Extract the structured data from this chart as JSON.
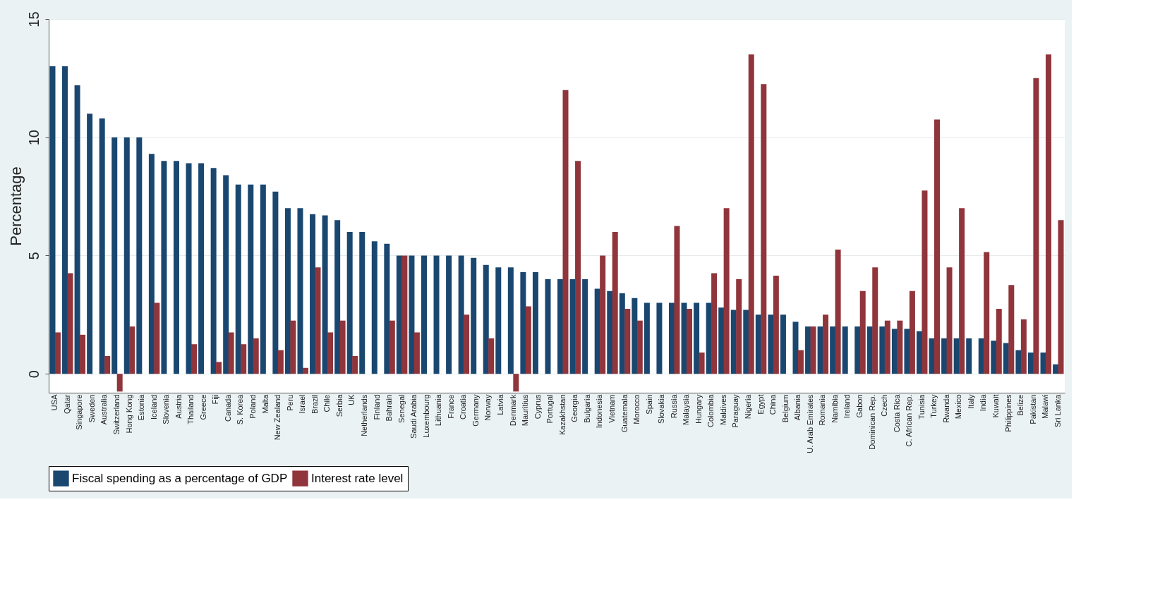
{
  "chart_data": {
    "type": "bar",
    "ylabel": "Percentage",
    "categories": [
      "USA",
      "Qatar",
      "Singapore",
      "Sweden",
      "Australia",
      "Switzerland",
      "Hong Kong",
      "Estonia",
      "Iceland",
      "Slovenia",
      "Austria",
      "Thailand",
      "Greece",
      "Fiji",
      "Canada",
      "S. Korea",
      "Poland",
      "Malta",
      "New Zealand",
      "Peru",
      "Israel",
      "Brazil",
      "Chile",
      "Serbia",
      "UK",
      "Netherlands",
      "Finland",
      "Bahrain",
      "Senegal",
      "Saudi Arabia",
      "Luxembourg",
      "Lithuania",
      "France",
      "Croatia",
      "Germany",
      "Norway",
      "Latvia",
      "Denmark",
      "Mauritius",
      "Cyprus",
      "Portugal",
      "Kazakhstan",
      "Georgia",
      "Bulgaria",
      "Indonesia",
      "Vietnam",
      "Guatemala",
      "Morocco",
      "Spain",
      "Slovakia",
      "Russia",
      "Malaysia",
      "Hungary",
      "Colombia",
      "Maldives",
      "Paraguay",
      "Nigeria",
      "Egypt",
      "China",
      "Belgium",
      "Albania",
      "U. Arab Emirates",
      "Romania",
      "Namibia",
      "Ireland",
      "Gabon",
      "Dominican Rep.",
      "Czech",
      "Costa Rica",
      "C. African Rep.",
      "Tunisia",
      "Turkey",
      "Rwanda",
      "Mexico",
      "Italy",
      "India",
      "Kuwait",
      "Philippines",
      "Belize",
      "Pakistan",
      "Malawi",
      "Sri Lanka"
    ],
    "series": [
      {
        "name": "Fiscal spending as a percentage of GDP",
        "color": "#1a476f",
        "values": [
          13,
          13,
          12.2,
          11,
          10.8,
          10,
          10,
          10,
          9.3,
          9,
          9,
          8.9,
          8.9,
          8.7,
          8.4,
          8,
          8,
          8,
          7.7,
          7,
          7,
          6.75,
          6.7,
          6.5,
          6,
          6,
          5.6,
          5.5,
          5,
          5,
          5,
          5,
          5,
          5,
          4.9,
          4.6,
          4.5,
          4.5,
          4.3,
          4.3,
          4,
          4,
          4,
          4,
          3.6,
          3.5,
          3.4,
          3.2,
          3,
          3,
          3,
          3,
          3,
          3,
          2.8,
          2.7,
          2.7,
          2.5,
          2.5,
          2.5,
          2.2,
          2,
          2,
          2,
          2,
          2,
          2,
          2,
          1.9,
          1.9,
          1.8,
          1.5,
          1.5,
          1.5,
          1.5,
          1.5,
          1.4,
          1.3,
          1,
          0.9,
          0.9,
          0.4
        ]
      },
      {
        "name": "Interest rate level",
        "color": "#90353b",
        "values": [
          1.75,
          4.25,
          1.65,
          null,
          0.75,
          -0.75,
          2,
          null,
          3,
          null,
          null,
          1.25,
          null,
          0.5,
          1.75,
          1.25,
          1.5,
          null,
          1,
          2.25,
          0.25,
          4.5,
          1.75,
          2.25,
          0.75,
          null,
          null,
          2.25,
          5,
          1.75,
          null,
          null,
          null,
          2.5,
          null,
          1.5,
          null,
          -0.75,
          2.85,
          null,
          null,
          12,
          9,
          null,
          5,
          6,
          2.75,
          2.25,
          null,
          null,
          6.25,
          2.75,
          0.9,
          4.25,
          7,
          4,
          13.5,
          12.25,
          4.15,
          null,
          1,
          2,
          2.5,
          5.25,
          null,
          3.5,
          4.5,
          2.25,
          2.25,
          3.5,
          7.75,
          10.75,
          4.5,
          7,
          null,
          5.15,
          2.75,
          3.75,
          2.3,
          12.5,
          13.5,
          6.5
        ]
      }
    ],
    "ylim": [
      -0.8,
      15
    ],
    "yticks": [
      0,
      5,
      10,
      15
    ],
    "grid": "y",
    "legend": "bottom"
  }
}
